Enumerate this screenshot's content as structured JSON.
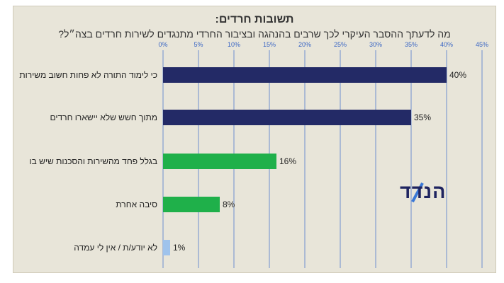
{
  "chart_data": {
    "type": "bar",
    "orientation": "horizontal",
    "title": "תשובות חרדים:",
    "subtitle": "מה לדעתך ההסבר העיקרי לכך שרבים בהנהגה ובציבור החרדי מתנגדים לשירות חרדים בצה״ל?",
    "categories": [
      "כי לימוד התורה לא פחות חשוב משירות",
      "מתוך חשש שלא יישארו חרדים",
      "בגלל פחד מהשירות והסכנות שיש בו",
      "סיבה אחרת",
      "לא יודע/ת / אין לי עמדה"
    ],
    "values": [
      40,
      35,
      16,
      8,
      1
    ],
    "value_labels": [
      "40%",
      "35%",
      "16%",
      "8%",
      "1%"
    ],
    "bar_colors": [
      "#232a66",
      "#232a66",
      "#1fb04a",
      "#1fb04a",
      "#9fc3ec"
    ],
    "xlim": [
      0,
      45
    ],
    "ticks": [
      0,
      5,
      10,
      15,
      20,
      25,
      30,
      35,
      40,
      45
    ],
    "tick_labels": [
      "0%",
      "5%",
      "10%",
      "15%",
      "20%",
      "25%",
      "30%",
      "35%",
      "40%",
      "45%"
    ],
    "grid": true,
    "axis_position": "top"
  },
  "logo": {
    "text": "הנדד",
    "color": "#1f2460",
    "accent": "#3a78d6"
  }
}
